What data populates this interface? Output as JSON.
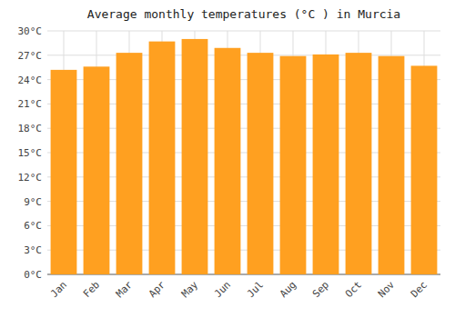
{
  "chart_data": {
    "type": "bar",
    "title": "Average monthly temperatures (°C ) in Murcia",
    "categories": [
      "Jan",
      "Feb",
      "Mar",
      "Apr",
      "May",
      "Jun",
      "Jul",
      "Aug",
      "Sep",
      "Oct",
      "Nov",
      "Dec"
    ],
    "values": [
      25.2,
      25.6,
      27.3,
      28.7,
      29.0,
      27.9,
      27.3,
      26.9,
      27.1,
      27.3,
      26.9,
      25.7
    ],
    "color": "#FFA020",
    "ylim": [
      0,
      30
    ],
    "yticks": [
      {
        "value": 0,
        "label": "0°C"
      },
      {
        "value": 3,
        "label": "3°C"
      },
      {
        "value": 6,
        "label": "6°C"
      },
      {
        "value": 9,
        "label": "9°C"
      },
      {
        "value": 12,
        "label": "12°C"
      },
      {
        "value": 15,
        "label": "15°C"
      },
      {
        "value": 18,
        "label": "18°C"
      },
      {
        "value": 21,
        "label": "21°C"
      },
      {
        "value": 24,
        "label": "24°C"
      },
      {
        "value": 27,
        "label": "27°C"
      },
      {
        "value": 30,
        "label": "30°C"
      }
    ],
    "grid": true
  }
}
